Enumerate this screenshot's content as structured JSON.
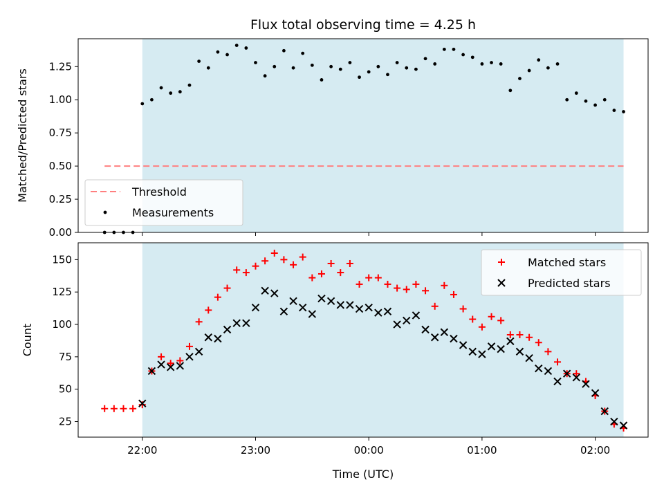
{
  "colors": {
    "shade": "#add8e6",
    "threshold": "#ff7f7f",
    "measurements": "#000000",
    "matched": "#ff0000",
    "predicted": "#000000"
  },
  "chart_data": [
    {
      "type": "scatter",
      "title": "Flux total observing time = 4.25 h",
      "xlabel": "",
      "ylabel": "Matched/Predicted stars",
      "xlim": [
        "21:26",
        "02:28"
      ],
      "ylim": [
        0,
        1.46
      ],
      "yticks": [
        "0.00",
        "0.25",
        "0.50",
        "0.75",
        "1.00",
        "1.25"
      ],
      "shaded_span": [
        "22:00",
        "02:15"
      ],
      "legend": {
        "loc": "lower-left",
        "entries": [
          "Threshold",
          "Measurements"
        ]
      },
      "threshold": {
        "name": "Threshold",
        "y": 0.5,
        "x": [
          "21:40",
          "02:15"
        ],
        "style": "dashed"
      },
      "series": [
        {
          "name": "Measurements",
          "x": [
            "21:40",
            "21:45",
            "21:50",
            "21:55",
            "22:00",
            "22:05",
            "22:10",
            "22:15",
            "22:20",
            "22:25",
            "22:30",
            "22:35",
            "22:40",
            "22:45",
            "22:50",
            "22:55",
            "23:00",
            "23:05",
            "23:10",
            "23:15",
            "23:20",
            "23:25",
            "23:30",
            "23:35",
            "23:40",
            "23:45",
            "23:50",
            "23:55",
            "00:00",
            "00:05",
            "00:10",
            "00:15",
            "00:20",
            "00:25",
            "00:30",
            "00:35",
            "00:40",
            "00:45",
            "00:50",
            "00:55",
            "01:00",
            "01:05",
            "01:10",
            "01:15",
            "01:20",
            "01:25",
            "01:30",
            "01:35",
            "01:40",
            "01:45",
            "01:50",
            "01:55",
            "02:00",
            "02:05",
            "02:10",
            "02:15"
          ],
          "y": [
            0,
            0,
            0,
            0,
            0.97,
            1.0,
            1.09,
            1.05,
            1.06,
            1.11,
            1.29,
            1.24,
            1.36,
            1.34,
            1.41,
            1.39,
            1.28,
            1.18,
            1.25,
            1.37,
            1.24,
            1.35,
            1.26,
            1.15,
            1.25,
            1.23,
            1.28,
            1.17,
            1.21,
            1.25,
            1.19,
            1.28,
            1.24,
            1.23,
            1.31,
            1.27,
            1.38,
            1.38,
            1.34,
            1.32,
            1.27,
            1.28,
            1.27,
            1.07,
            1.16,
            1.22,
            1.3,
            1.24,
            1.27,
            1.0,
            1.05,
            0.99,
            0.96,
            1.0,
            0.92,
            0.91
          ]
        }
      ]
    },
    {
      "type": "scatter",
      "title": "",
      "xlabel": "Time (UTC)",
      "ylabel": "Count",
      "xlim": [
        "21:26",
        "02:28"
      ],
      "ylim": [
        13,
        163
      ],
      "xticks": [
        "22:00",
        "23:00",
        "00:00",
        "01:00",
        "02:00"
      ],
      "yticks": [
        25,
        50,
        75,
        100,
        125,
        150
      ],
      "shaded_span": [
        "22:00",
        "02:15"
      ],
      "legend": {
        "loc": "upper-right",
        "entries": [
          "Matched stars",
          "Predicted stars"
        ]
      },
      "series": [
        {
          "name": "Matched stars",
          "marker": "+",
          "x": [
            "21:40",
            "21:45",
            "21:50",
            "21:55",
            "22:00",
            "22:05",
            "22:10",
            "22:15",
            "22:20",
            "22:25",
            "22:30",
            "22:35",
            "22:40",
            "22:45",
            "22:50",
            "22:55",
            "23:00",
            "23:05",
            "23:10",
            "23:15",
            "23:20",
            "23:25",
            "23:30",
            "23:35",
            "23:40",
            "23:45",
            "23:50",
            "23:55",
            "00:00",
            "00:05",
            "00:10",
            "00:15",
            "00:20",
            "00:25",
            "00:30",
            "00:35",
            "00:40",
            "00:45",
            "00:50",
            "00:55",
            "01:00",
            "01:05",
            "01:10",
            "01:15",
            "01:20",
            "01:25",
            "01:30",
            "01:35",
            "01:40",
            "01:45",
            "01:50",
            "01:55",
            "02:00",
            "02:05",
            "02:10",
            "02:15"
          ],
          "y": [
            35,
            35,
            35,
            35,
            38,
            64,
            75,
            70,
            72,
            83,
            102,
            111,
            121,
            128,
            142,
            140,
            145,
            149,
            155,
            150,
            146,
            152,
            136,
            139,
            147,
            140,
            147,
            131,
            136,
            136,
            131,
            128,
            127,
            131,
            126,
            114,
            130,
            123,
            112,
            104,
            98,
            106,
            103,
            92,
            92,
            90,
            86,
            79,
            71,
            62,
            62,
            56,
            45,
            33,
            23,
            20
          ]
        },
        {
          "name": "Predicted stars",
          "marker": "x",
          "x": [
            "22:00",
            "22:05",
            "22:10",
            "22:15",
            "22:20",
            "22:25",
            "22:30",
            "22:35",
            "22:40",
            "22:45",
            "22:50",
            "22:55",
            "23:00",
            "23:05",
            "23:10",
            "23:15",
            "23:20",
            "23:25",
            "23:30",
            "23:35",
            "23:40",
            "23:45",
            "23:50",
            "23:55",
            "00:00",
            "00:05",
            "00:10",
            "00:15",
            "00:20",
            "00:25",
            "00:30",
            "00:35",
            "00:40",
            "00:45",
            "00:50",
            "00:55",
            "01:00",
            "01:05",
            "01:10",
            "01:15",
            "01:20",
            "01:25",
            "01:30",
            "01:35",
            "01:40",
            "01:45",
            "01:50",
            "01:55",
            "02:00",
            "02:05",
            "02:10",
            "02:15"
          ],
          "y": [
            39,
            64,
            69,
            67,
            68,
            75,
            79,
            90,
            89,
            96,
            101,
            101,
            113,
            126,
            124,
            110,
            118,
            113,
            108,
            120,
            118,
            115,
            115,
            112,
            113,
            109,
            110,
            100,
            103,
            107,
            96,
            90,
            94,
            89,
            84,
            79,
            77,
            83,
            81,
            87,
            79,
            74,
            66,
            64,
            56,
            62,
            59,
            54,
            47,
            33,
            25,
            22
          ]
        }
      ]
    }
  ]
}
